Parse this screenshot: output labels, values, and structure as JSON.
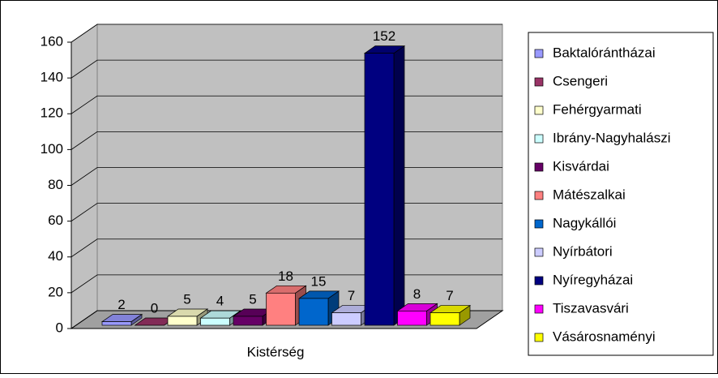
{
  "chart_data": {
    "type": "bar",
    "categories": [
      "Kistérség"
    ],
    "series": [
      {
        "name": "Baktalórántházai",
        "color": "#9999ff",
        "values": [
          2
        ]
      },
      {
        "name": "Csengeri",
        "color": "#993366",
        "values": [
          0
        ]
      },
      {
        "name": "Fehérgyarmati",
        "color": "#ffffcc",
        "values": [
          5
        ]
      },
      {
        "name": "Ibrány-Nagyhalászi",
        "color": "#ccffff",
        "values": [
          4
        ]
      },
      {
        "name": "Kisvárdai",
        "color": "#660066",
        "values": [
          5
        ]
      },
      {
        "name": "Mátészalkai",
        "color": "#ff8080",
        "values": [
          18
        ]
      },
      {
        "name": "Nagykállói",
        "color": "#0066cc",
        "values": [
          15
        ]
      },
      {
        "name": "Nyírbátori",
        "color": "#ccccff",
        "values": [
          7
        ]
      },
      {
        "name": "Nyíregyházai",
        "color": "#000080",
        "values": [
          152
        ]
      },
      {
        "name": "Tiszavasvári",
        "color": "#ff00ff",
        "values": [
          8
        ]
      },
      {
        "name": "Vásárosnaményi",
        "color": "#ffff00",
        "values": [
          7
        ]
      }
    ],
    "ylim": [
      0,
      160
    ],
    "yticks": [
      0,
      20,
      40,
      60,
      80,
      100,
      120,
      140,
      160
    ],
    "grid": true,
    "legend": "right"
  }
}
